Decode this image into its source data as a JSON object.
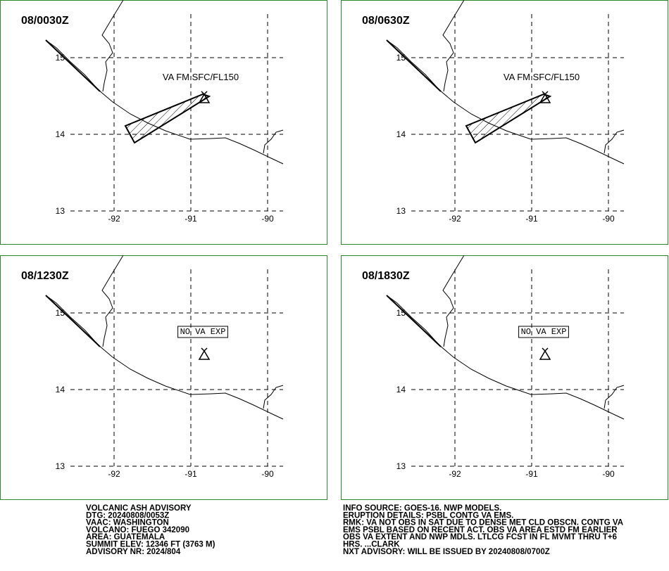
{
  "map": {
    "lat_ticks": [
      15,
      14,
      13
    ],
    "lon_ticks": [
      -92,
      -91,
      -90
    ],
    "panels": [
      {
        "time": "08/0030Z",
        "annotation": "VA FM SFC/FL150"
      },
      {
        "time": "08/0630Z",
        "annotation": "VA FM SFC/FL150"
      },
      {
        "time": "08/1230Z",
        "annotation": "NO VA EXP"
      },
      {
        "time": "08/1830Z",
        "annotation": "NO VA EXP"
      }
    ]
  },
  "advisory": {
    "left": [
      "VOLCANIC ASH ADVISORY",
      "DTG: 20240808/0053Z",
      "VAAC: WASHINGTON",
      "VOLCANO: FUEGO 342090",
      "AREA: GUATEMALA",
      "SUMMIT ELEV: 12346 FT (3763 M)",
      "ADVISORY NR: 2024/804"
    ],
    "right": [
      "INFO SOURCE: GOES-16. NWP MODELS.",
      "ERUPTION DETAILS: PSBL CONTG VA EMS.",
      "RMK: VA NOT OBS IN SAT DUE TO DENSE MET CLD OBSCN. CONTG VA",
      "EMS PSBL BASED ON RECENT ACT. OBS VA AREA ESTD FM EARLIER",
      "OBS VA EXTENT AND NWP MDLS. LTLCG FCST IN FL MVMT THRU T+6",
      "HRS. ...CLARK",
      "NXT ADVISORY: WILL BE ISSUED BY 20240808/0700Z"
    ]
  }
}
